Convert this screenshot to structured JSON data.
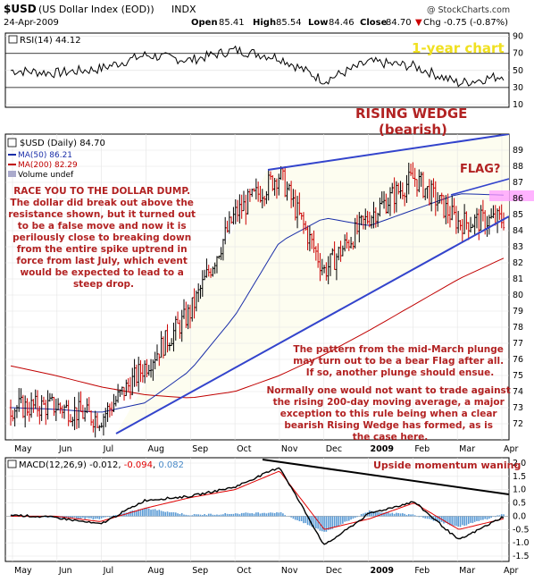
{
  "header": {
    "symbol": "$USD",
    "name": "(US Dollar Index (EOD))",
    "exchange": "INDX",
    "date": "24-Apr-2009",
    "open_label": "Open",
    "open": "85.41",
    "high_label": "High",
    "high": "85.54",
    "low_label": "Low",
    "low": "84.46",
    "close_label": "Close",
    "close": "84.70",
    "change": "Chg -0.75 (-0.87%)",
    "change_arrow": "▼",
    "watermark": "@ StockCharts.com"
  },
  "rsi_panel": {
    "label": "RSI(14) 44.12",
    "ticks": [
      "90",
      "70",
      "50",
      "30",
      "10"
    ]
  },
  "price_panel": {
    "legend": {
      "symbol": "$USD (Daily) 84.70",
      "ma50": "MA(50) 86.21",
      "ma200": "MA(200) 82.29",
      "volume": "Volume undef"
    },
    "ticks": [
      "89",
      "88",
      "87",
      "86",
      "85",
      "84",
      "83",
      "82",
      "81",
      "80",
      "79",
      "78",
      "77",
      "76",
      "75",
      "74",
      "73",
      "72"
    ],
    "month_labels": [
      "May",
      "Jun",
      "Jul",
      "Aug",
      "Sep",
      "Oct",
      "Nov",
      "Dec",
      "2009",
      "Feb",
      "Mar",
      "Apr"
    ]
  },
  "annotations": {
    "one_year": "1-year chart",
    "wedge_title": "RISING WEDGE",
    "wedge_sub": "(bearish)",
    "flag": "FLAG?",
    "race": [
      "RACE YOU TO THE DOLLAR DUMP.",
      "The dollar did break out above the",
      "resistance shown, but it turned out",
      "to be a false move and now it is",
      "perilously close to breaking down",
      "from the entire spike uptrend in",
      "force from last July, which event",
      "would be expected to lead to a",
      "steep drop."
    ],
    "pattern": [
      "The pattern from the mid-March plunge",
      "may turn out to be a bear Flag after all.",
      "If so, another plunge should ensue."
    ],
    "normally": [
      "Normally one would not want to trade against",
      "the rising 200-day moving average, a major",
      "exception to this rule being when a clear",
      "bearish Rising Wedge has formed, as is",
      "the case here."
    ],
    "momentum": "Upside momentum waning"
  },
  "macd_panel": {
    "label_prefix": "MACD(12,26,9)",
    "macd": "-0.012",
    "signal": "-0.094",
    "hist": "0.082",
    "ticks": [
      "2.0",
      "1.5",
      "1.0",
      "0.5",
      "0.0",
      "-0.5",
      "-1.0",
      "-1.5"
    ],
    "month_labels": [
      "May",
      "Jun",
      "Jul",
      "Aug",
      "Sep",
      "Oct",
      "Nov",
      "Dec",
      "2009",
      "Feb",
      "Mar",
      "Apr"
    ]
  },
  "colors": {
    "price_up": "#000000",
    "price_down": "#cc0000",
    "ma50": "#1a2ea8",
    "ma200": "#c00000",
    "trendline": "#3344cc",
    "annotation": "#b22222",
    "wedge_fill": "#fdfdf0",
    "flag_box": "#ff99ff"
  },
  "chart_data": [
    {
      "type": "line",
      "title": "RSI(14) 44.12",
      "ylim": [
        10,
        90
      ],
      "x": [
        "May",
        "Jun",
        "Jul",
        "Aug",
        "Sep",
        "Oct",
        "Nov",
        "Dec",
        "Jan",
        "Feb",
        "Mar",
        "Apr"
      ],
      "series": [
        {
          "name": "RSI(14)",
          "values": [
            50,
            47,
            52,
            68,
            62,
            74,
            65,
            38,
            60,
            55,
            35,
            44
          ]
        }
      ]
    },
    {
      "type": "line",
      "title": "$USD (Daily) 84.70",
      "ylim": [
        71,
        90
      ],
      "x": [
        "May",
        "Jun",
        "Jul",
        "Aug",
        "Sep",
        "Oct",
        "Nov",
        "Dec",
        "Jan",
        "Feb",
        "Mar",
        "Apr"
      ],
      "series": [
        {
          "name": "$USD (Daily)",
          "values": [
            73.0,
            73.1,
            72.3,
            75.6,
            78.9,
            85.0,
            87.5,
            81.5,
            84.9,
            87.3,
            84.5,
            84.7
          ]
        },
        {
          "name": "MA(50)",
          "values": [
            73.0,
            72.9,
            72.7,
            73.3,
            75.3,
            78.7,
            83.3,
            84.8,
            84.3,
            85.3,
            86.3,
            86.21
          ]
        },
        {
          "name": "MA(200)",
          "values": [
            75.6,
            75.0,
            74.3,
            73.8,
            73.6,
            74.0,
            75.0,
            76.3,
            77.8,
            79.4,
            81.0,
            82.29
          ]
        }
      ]
    },
    {
      "type": "line",
      "title": "MACD(12,26,9) -0.012, -0.094, 0.082",
      "ylim": [
        -1.5,
        2.0
      ],
      "x": [
        "May",
        "Jun",
        "Jul",
        "Aug",
        "Sep",
        "Oct",
        "Nov",
        "Dec",
        "Jan",
        "Feb",
        "Mar",
        "Apr"
      ],
      "series": [
        {
          "name": "MACD(12,26,9)",
          "values": [
            0.05,
            -0.05,
            -0.3,
            0.6,
            0.75,
            1.1,
            1.85,
            -1.1,
            0.1,
            0.55,
            -0.9,
            -0.012
          ]
        },
        {
          "name": "Signal",
          "values": [
            0.0,
            0.0,
            -0.2,
            0.3,
            0.7,
            1.0,
            1.7,
            -0.5,
            -0.1,
            0.5,
            -0.5,
            -0.094
          ]
        },
        {
          "name": "Histogram",
          "values": [
            0.05,
            -0.05,
            -0.1,
            0.3,
            0.05,
            0.1,
            0.15,
            -0.6,
            0.2,
            0.05,
            -0.4,
            0.082
          ]
        }
      ]
    }
  ]
}
